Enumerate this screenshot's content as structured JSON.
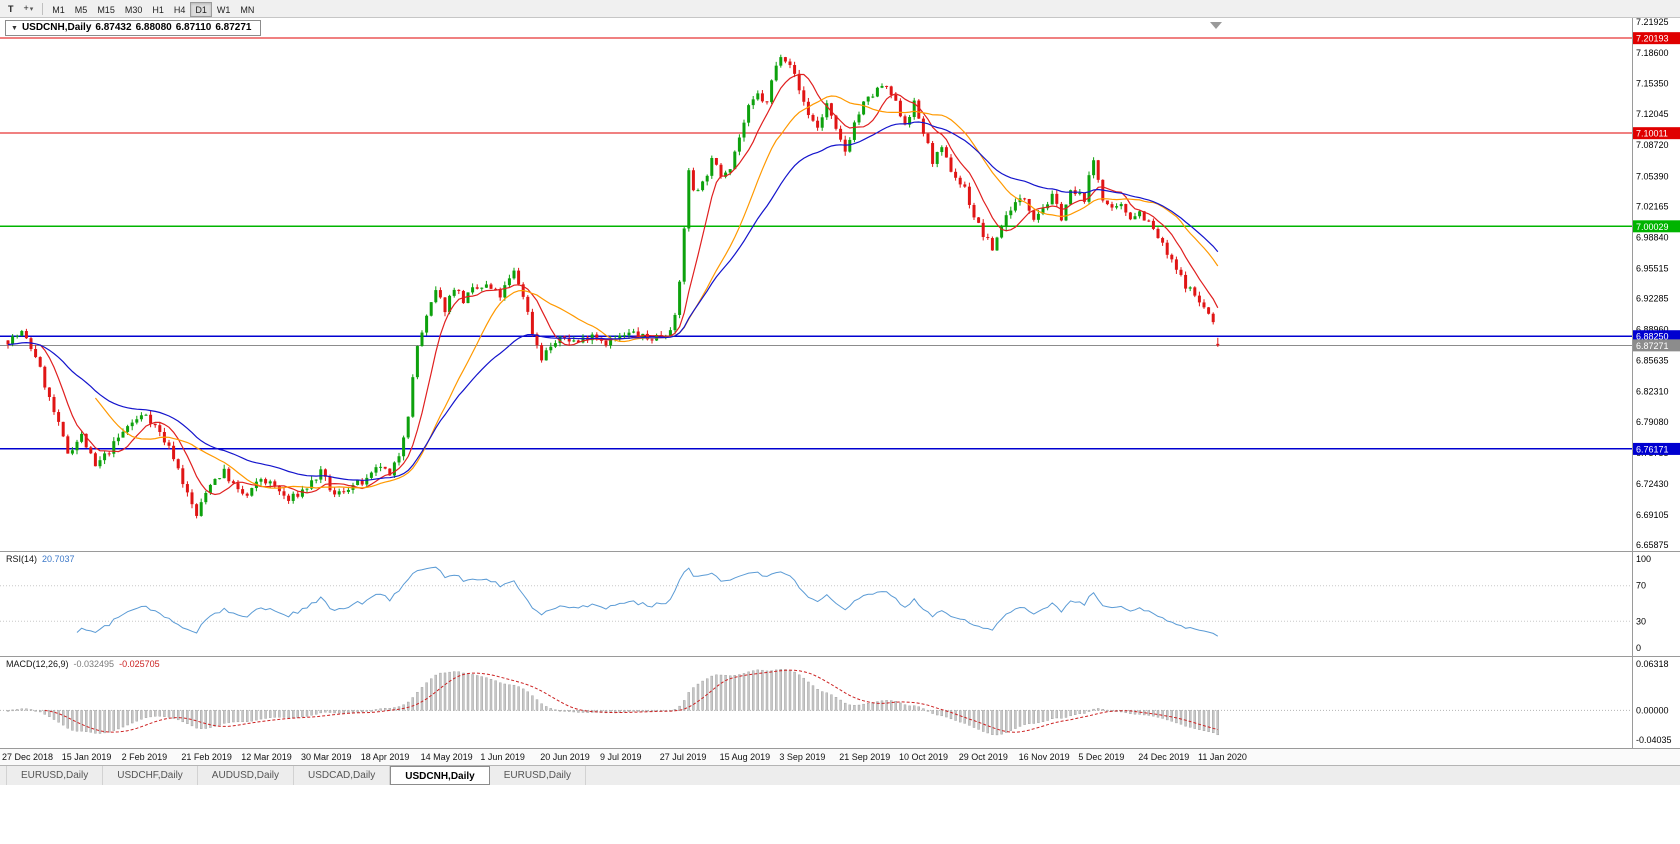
{
  "toolbar": {
    "t_label": "T",
    "icons": {
      "crosshair": "+",
      "caret": "▾"
    },
    "timeframes": [
      "M1",
      "M5",
      "M15",
      "M30",
      "H1",
      "H4",
      "D1",
      "W1",
      "MN"
    ],
    "active_timeframe": "D1"
  },
  "chart": {
    "ohlc_header": {
      "arrow": "▼",
      "symbol": "USDCNH,Daily",
      "open": "6.87432",
      "high": "6.88080",
      "low": "6.87110",
      "close": "6.87271"
    },
    "price_axis": [
      "7.21925",
      "7.18600",
      "7.15350",
      "7.12045",
      "7.08720",
      "7.05390",
      "7.02165",
      "6.98840",
      "6.95515",
      "6.92285",
      "6.88960",
      "6.85635",
      "6.82310",
      "6.79080",
      "6.75755",
      "6.72430",
      "6.69105",
      "6.65875"
    ],
    "hlines": [
      {
        "price": 7.20193,
        "label": "7.20193",
        "color": "#e00000",
        "width": 1
      },
      {
        "price": 7.10011,
        "label": "7.10011",
        "color": "#e00000",
        "width": 1
      },
      {
        "price": 7.00029,
        "label": "7.00029",
        "color": "#00b400",
        "width": 1.5
      },
      {
        "price": 6.8825,
        "label": "6.88250",
        "color": "#0000d0",
        "width": 1.6
      },
      {
        "price": 6.76171,
        "label": "6.76171",
        "color": "#0000d0",
        "width": 1.6
      }
    ],
    "current_price": {
      "price": 6.87271,
      "label": "6.87271",
      "color": "#8c8c8c"
    },
    "date_axis": [
      "27 Dec 2018",
      "15 Jan 2019",
      "2 Feb 2019",
      "21 Feb 2019",
      "12 Mar 2019",
      "30 Mar 2019",
      "18 Apr 2019",
      "14 May 2019",
      "1 Jun 2019",
      "20 Jun 2019",
      "9 Jul 2019",
      "27 Jul 2019",
      "15 Aug 2019",
      "3 Sep 2019",
      "21 Sep 2019",
      "10 Oct 2019",
      "29 Oct 2019",
      "16 Nov 2019",
      "5 Dec 2019",
      "24 Dec 2019",
      "11 Jan 2020"
    ]
  },
  "rsi": {
    "title": "RSI(14)",
    "value": "20.7037",
    "axis": [
      "100",
      "70",
      "30",
      "0"
    ],
    "levels": [
      70,
      30
    ],
    "color": "#5b9bd5"
  },
  "macd": {
    "title": "MACD(12,26,9)",
    "value_main": "-0.032495",
    "value_signal": "-0.025705",
    "axis": [
      "0.06318",
      "0.00000",
      "-0.04035"
    ]
  },
  "tabs": [
    {
      "label": "EURUSD,Daily",
      "active": false
    },
    {
      "label": "USDCHF,Daily",
      "active": false
    },
    {
      "label": "AUDUSD,Daily",
      "active": false
    },
    {
      "label": "USDCAD,Daily",
      "active": false
    },
    {
      "label": "USDCNH,Daily",
      "active": true
    },
    {
      "label": "EURUSD,Daily",
      "active": false
    }
  ],
  "chart_data": {
    "type": "candlestick",
    "symbol": "USDCNH",
    "timeframe": "Daily",
    "seed": 7,
    "candle_count": 264,
    "last_candle": {
      "open": 6.87432,
      "high": 6.8808,
      "low": 6.8711,
      "close": 6.87271
    },
    "ylim": [
      6.65875,
      7.21925
    ],
    "price_anchors": [
      [
        0,
        6.878
      ],
      [
        3,
        6.886
      ],
      [
        6,
        6.862
      ],
      [
        9,
        6.815
      ],
      [
        13,
        6.758
      ],
      [
        16,
        6.776
      ],
      [
        19,
        6.742
      ],
      [
        22,
        6.76
      ],
      [
        26,
        6.786
      ],
      [
        30,
        6.8
      ],
      [
        33,
        6.779
      ],
      [
        36,
        6.754
      ],
      [
        39,
        6.713
      ],
      [
        41,
        6.69
      ],
      [
        44,
        6.726
      ],
      [
        47,
        6.737
      ],
      [
        50,
        6.716
      ],
      [
        52,
        6.711
      ],
      [
        55,
        6.73
      ],
      [
        58,
        6.721
      ],
      [
        61,
        6.706
      ],
      [
        65,
        6.721
      ],
      [
        68,
        6.736
      ],
      [
        71,
        6.711
      ],
      [
        74,
        6.721
      ],
      [
        78,
        6.727
      ],
      [
        81,
        6.744
      ],
      [
        83,
        6.731
      ],
      [
        85,
        6.756
      ],
      [
        87,
        6.8
      ],
      [
        89,
        6.872
      ],
      [
        91,
        6.902
      ],
      [
        93,
        6.93
      ],
      [
        95,
        6.912
      ],
      [
        97,
        6.936
      ],
      [
        99,
        6.921
      ],
      [
        101,
        6.931
      ],
      [
        104,
        6.936
      ],
      [
        107,
        6.926
      ],
      [
        110,
        6.951
      ],
      [
        112,
        6.927
      ],
      [
        114,
        6.887
      ],
      [
        116,
        6.86
      ],
      [
        118,
        6.872
      ],
      [
        121,
        6.881
      ],
      [
        124,
        6.876
      ],
      [
        127,
        6.886
      ],
      [
        130,
        6.876
      ],
      [
        133,
        6.881
      ],
      [
        136,
        6.886
      ],
      [
        139,
        6.879
      ],
      [
        143,
        6.886
      ],
      [
        145,
        6.901
      ],
      [
        146,
        6.94
      ],
      [
        147,
        7.0
      ],
      [
        148,
        7.058
      ],
      [
        149,
        7.04
      ],
      [
        151,
        7.046
      ],
      [
        153,
        7.07
      ],
      [
        155,
        7.056
      ],
      [
        157,
        7.066
      ],
      [
        159,
        7.096
      ],
      [
        161,
        7.126
      ],
      [
        163,
        7.141
      ],
      [
        165,
        7.131
      ],
      [
        166,
        7.156
      ],
      [
        168,
        7.186
      ],
      [
        170,
        7.176
      ],
      [
        172,
        7.146
      ],
      [
        174,
        7.121
      ],
      [
        176,
        7.106
      ],
      [
        178,
        7.131
      ],
      [
        180,
        7.101
      ],
      [
        182,
        7.081
      ],
      [
        184,
        7.111
      ],
      [
        186,
        7.131
      ],
      [
        188,
        7.141
      ],
      [
        190,
        7.151
      ],
      [
        192,
        7.141
      ],
      [
        194,
        7.121
      ],
      [
        195,
        7.111
      ],
      [
        197,
        7.131
      ],
      [
        199,
        7.101
      ],
      [
        201,
        7.071
      ],
      [
        203,
        7.081
      ],
      [
        205,
        7.061
      ],
      [
        207,
        7.046
      ],
      [
        208,
        7.041
      ],
      [
        210,
        7.011
      ],
      [
        212,
        6.991
      ],
      [
        214,
        6.976
      ],
      [
        216,
        7.001
      ],
      [
        218,
        7.021
      ],
      [
        221,
        7.031
      ],
      [
        223,
        7.011
      ],
      [
        225,
        7.021
      ],
      [
        227,
        7.031
      ],
      [
        229,
        7.011
      ],
      [
        231,
        7.036
      ],
      [
        234,
        7.031
      ],
      [
        236,
        7.071
      ],
      [
        238,
        7.031
      ],
      [
        240,
        7.016
      ],
      [
        242,
        7.021
      ],
      [
        244,
        7.011
      ],
      [
        246,
        7.016
      ],
      [
        248,
        7.004
      ],
      [
        250,
        6.988
      ],
      [
        252,
        6.97
      ],
      [
        254,
        6.953
      ],
      [
        256,
        6.938
      ],
      [
        258,
        6.926
      ],
      [
        260,
        6.913
      ],
      [
        261,
        6.906
      ],
      [
        262,
        6.896
      ],
      [
        263,
        6.873
      ]
    ],
    "moving_averages": [
      {
        "period": 8,
        "type": "sma",
        "color": "#e02020"
      },
      {
        "period": 20,
        "type": "sma",
        "color": "#ff9900"
      },
      {
        "period": 35,
        "type": "ema",
        "color": "#1414cc"
      }
    ],
    "indicators": {
      "rsi_period": 14,
      "macd": [
        12,
        26,
        9
      ]
    },
    "colors": {
      "up": "#0da10d",
      "down": "#e01515",
      "macd_hist": "#c6c6c6",
      "macd_hist_edge": "#9a9a9a",
      "macd_signal": "#cc2222"
    }
  }
}
